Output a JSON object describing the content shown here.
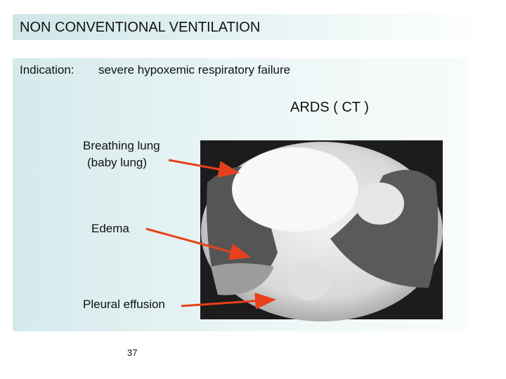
{
  "header": {
    "title": "NON CONVENTIONAL VENTILATION"
  },
  "indication": {
    "label": "Indication:",
    "text": "severe hypoxemic respiratory failure"
  },
  "figure": {
    "caption": "ARDS ( CT )",
    "annotations": [
      "Breathing lung",
      "(baby lung)",
      "Edema",
      "Pleural effusion"
    ]
  },
  "footer": {
    "page_number": 37
  }
}
